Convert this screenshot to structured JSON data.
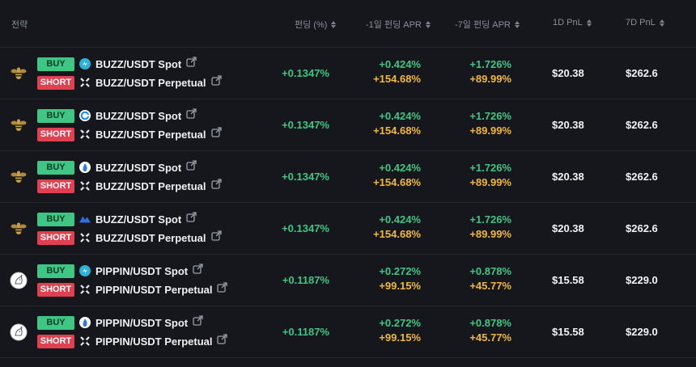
{
  "header": {
    "strategy": "전략",
    "funding": "펀딩 (%)",
    "apr1": "-1일 펀딩 APR",
    "apr7": "-7일 펀딩 APR",
    "pnl1": "1D PnL",
    "pnl7": "7D PnL"
  },
  "rows": [
    {
      "buy_label": "BUY",
      "short_label": "SHORT",
      "spot": "BUZZ/USDT Spot",
      "perp": "BUZZ/USDT Perpetual",
      "funding": "+0.1347%",
      "apr1": "+0.424%",
      "apr1_yearly": "+154.68%",
      "apr7": "+1.726%",
      "apr7_yearly": "+89.99%",
      "pnl1": "$20.38",
      "pnl7": "$262.6"
    },
    {
      "buy_label": "BUY",
      "short_label": "SHORT",
      "spot": "BUZZ/USDT Spot",
      "perp": "BUZZ/USDT Perpetual",
      "funding": "+0.1347%",
      "apr1": "+0.424%",
      "apr1_yearly": "+154.68%",
      "apr7": "+1.726%",
      "apr7_yearly": "+89.99%",
      "pnl1": "$20.38",
      "pnl7": "$262.6"
    },
    {
      "buy_label": "BUY",
      "short_label": "SHORT",
      "spot": "BUZZ/USDT Spot",
      "perp": "BUZZ/USDT Perpetual",
      "funding": "+0.1347%",
      "apr1": "+0.424%",
      "apr1_yearly": "+154.68%",
      "apr7": "+1.726%",
      "apr7_yearly": "+89.99%",
      "pnl1": "$20.38",
      "pnl7": "$262.6"
    },
    {
      "buy_label": "BUY",
      "short_label": "SHORT",
      "spot": "BUZZ/USDT Spot",
      "perp": "BUZZ/USDT Perpetual",
      "funding": "+0.1347%",
      "apr1": "+0.424%",
      "apr1_yearly": "+154.68%",
      "apr7": "+1.726%",
      "apr7_yearly": "+89.99%",
      "pnl1": "$20.38",
      "pnl7": "$262.6"
    },
    {
      "buy_label": "BUY",
      "short_label": "SHORT",
      "spot": "PIPPIN/USDT Spot",
      "perp": "PIPPIN/USDT Perpetual",
      "funding": "+0.1187%",
      "apr1": "+0.272%",
      "apr1_yearly": "+99.15%",
      "apr7": "+0.878%",
      "apr7_yearly": "+45.77%",
      "pnl1": "$15.58",
      "pnl7": "$229.0"
    },
    {
      "buy_label": "BUY",
      "short_label": "SHORT",
      "spot": "PIPPIN/USDT Spot",
      "perp": "PIPPIN/USDT Perpetual",
      "funding": "+0.1187%",
      "apr1": "+0.272%",
      "apr1_yearly": "+99.15%",
      "apr7": "+0.878%",
      "apr7_yearly": "+45.77%",
      "pnl1": "$15.58",
      "pnl7": "$229.0"
    }
  ],
  "icons": {
    "token_buzz": "bee-icon",
    "token_pippin": "unicorn-icon",
    "exchanges": [
      "swap-exchange-icon",
      "circle-c-exchange-icon",
      "flame-exchange-icon",
      "mountain-exchange-icon",
      "swap-exchange-icon",
      "flame-exchange-icon"
    ],
    "perp_exchange": "x-exchange-icon",
    "external": "external-link-icon"
  },
  "colors": {
    "positive": "#3fc685",
    "yearly": "#f0b93b",
    "buy": "#3fc685",
    "short": "#e0404f"
  }
}
